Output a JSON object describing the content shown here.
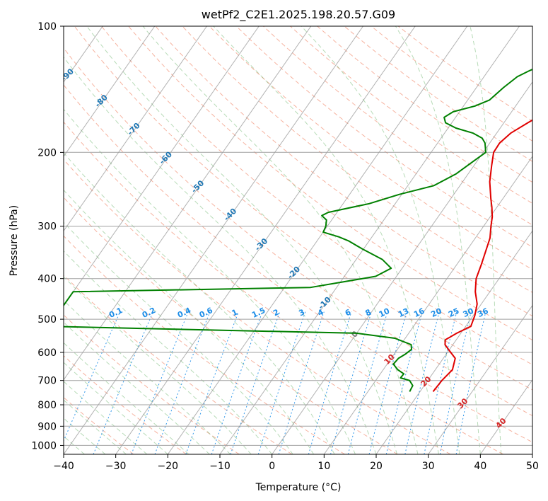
{
  "chart_data": {
    "type": "line",
    "diagram": "skew-T log-P",
    "title": "wetPf2_C2E1.2025.198.20.57.G09",
    "xlabel": "Temperature (°C)",
    "ylabel": "Pressure (hPa)",
    "xlim": [
      -40,
      50
    ],
    "ylim": [
      1050,
      100
    ],
    "y_scale": "log",
    "grid": true,
    "x_ticks": [
      "−40",
      "−30",
      "−20",
      "−10",
      "0",
      "10",
      "20",
      "30",
      "40",
      "50"
    ],
    "x_tick_values": [
      -40,
      -30,
      -20,
      -10,
      0,
      10,
      20,
      30,
      40,
      50
    ],
    "y_ticks": [
      "100",
      "200",
      "300",
      "400",
      "500",
      "600",
      "700",
      "800",
      "900",
      "1000"
    ],
    "y_tick_values": [
      100,
      200,
      300,
      400,
      500,
      600,
      700,
      800,
      900,
      1000
    ],
    "series": [
      {
        "color": "#e00000",
        "points": [
          [
            22.5,
            744
          ],
          [
            22.7,
            700
          ],
          [
            23.3,
            660
          ],
          [
            22.3,
            620
          ],
          [
            20.2,
            595
          ],
          [
            18.5,
            575
          ],
          [
            17.9,
            560
          ],
          [
            19.2,
            540
          ],
          [
            21,
            520
          ],
          [
            20.3,
            490
          ],
          [
            19.2,
            460
          ],
          [
            17.2,
            430
          ],
          [
            15.6,
            400
          ],
          [
            14.7,
            370
          ],
          [
            13.6,
            340
          ],
          [
            12.8,
            320
          ],
          [
            11.4,
            300
          ],
          [
            10.4,
            285
          ],
          [
            9,
            270
          ],
          [
            7.7,
            258
          ],
          [
            5.2,
            235
          ],
          [
            3.4,
            215
          ],
          [
            2,
            200
          ],
          [
            1.9,
            190
          ],
          [
            2.7,
            180
          ],
          [
            4.6,
            170
          ],
          [
            6.3,
            162
          ],
          [
            6.2,
            155
          ],
          [
            5.5,
            148
          ],
          [
            4.7,
            140
          ],
          [
            4.6,
            132
          ],
          [
            4.6,
            125
          ],
          [
            4.8,
            120
          ],
          [
            4.8,
            115
          ],
          [
            5,
            110
          ],
          [
            4.5,
            100
          ]
        ]
      },
      {
        "color": "#008000",
        "points": [
          [
            18,
            744
          ],
          [
            17.8,
            720
          ],
          [
            16.5,
            700
          ],
          [
            14.4,
            690
          ],
          [
            14.5,
            675
          ],
          [
            12.8,
            660
          ],
          [
            11.2,
            640
          ],
          [
            11.4,
            620
          ],
          [
            12.2,
            605
          ],
          [
            12.7,
            590
          ],
          [
            12,
            575
          ],
          [
            8,
            555
          ],
          [
            0,
            540
          ],
          [
            -30,
            530
          ],
          [
            -60,
            520
          ],
          [
            -60,
            430
          ],
          [
            -15,
            420
          ],
          [
            -4,
            395
          ],
          [
            -2.1,
            378
          ],
          [
            -5,
            360
          ],
          [
            -10.2,
            340
          ],
          [
            -14,
            325
          ],
          [
            -16.4,
            318
          ],
          [
            -20,
            310
          ],
          [
            -20.3,
            300
          ],
          [
            -21,
            290
          ],
          [
            -22.5,
            283
          ],
          [
            -21.7,
            278
          ],
          [
            -15,
            265
          ],
          [
            -10.5,
            252
          ],
          [
            -5,
            240
          ],
          [
            -2.3,
            225
          ],
          [
            -0.7,
            210
          ],
          [
            0.5,
            200
          ],
          [
            -0.9,
            190
          ],
          [
            -2.1,
            185
          ],
          [
            -4.5,
            180
          ],
          [
            -8.5,
            175
          ],
          [
            -11.2,
            170
          ],
          [
            -12.2,
            165
          ],
          [
            -11.2,
            160
          ],
          [
            -7.8,
            155
          ],
          [
            -5.8,
            150
          ],
          [
            -4.8,
            140
          ],
          [
            -3.6,
            132
          ],
          [
            -2.2,
            128
          ],
          [
            -0.1,
            123
          ],
          [
            -0.8,
            122
          ],
          [
            2.9,
            115
          ],
          [
            5.5,
            110
          ],
          [
            8.3,
            105
          ],
          [
            9,
            100
          ]
        ]
      }
    ],
    "dry_adiabat_labels": [
      "-100",
      "-90",
      "-80",
      "-70",
      "-60",
      "-50",
      "-40",
      "-30",
      "-20",
      "-10",
      "0",
      "10",
      "20",
      "30",
      "40"
    ],
    "mixing_ratio_labels": [
      "0.1",
      "0.2",
      "0.4",
      "0.6",
      "1",
      "1.5",
      "2",
      "3",
      "4",
      "6",
      "8",
      "10",
      "13",
      "16",
      "20",
      "25",
      "30",
      "36"
    ],
    "colors": {
      "temperature": "#e00000",
      "dewpoint": "#008000",
      "dry_adiabat": "#f08060",
      "moist_adiabat": "#60b060",
      "mixing_ratio": "#1e8ee8",
      "isotherm": "#808080"
    }
  }
}
